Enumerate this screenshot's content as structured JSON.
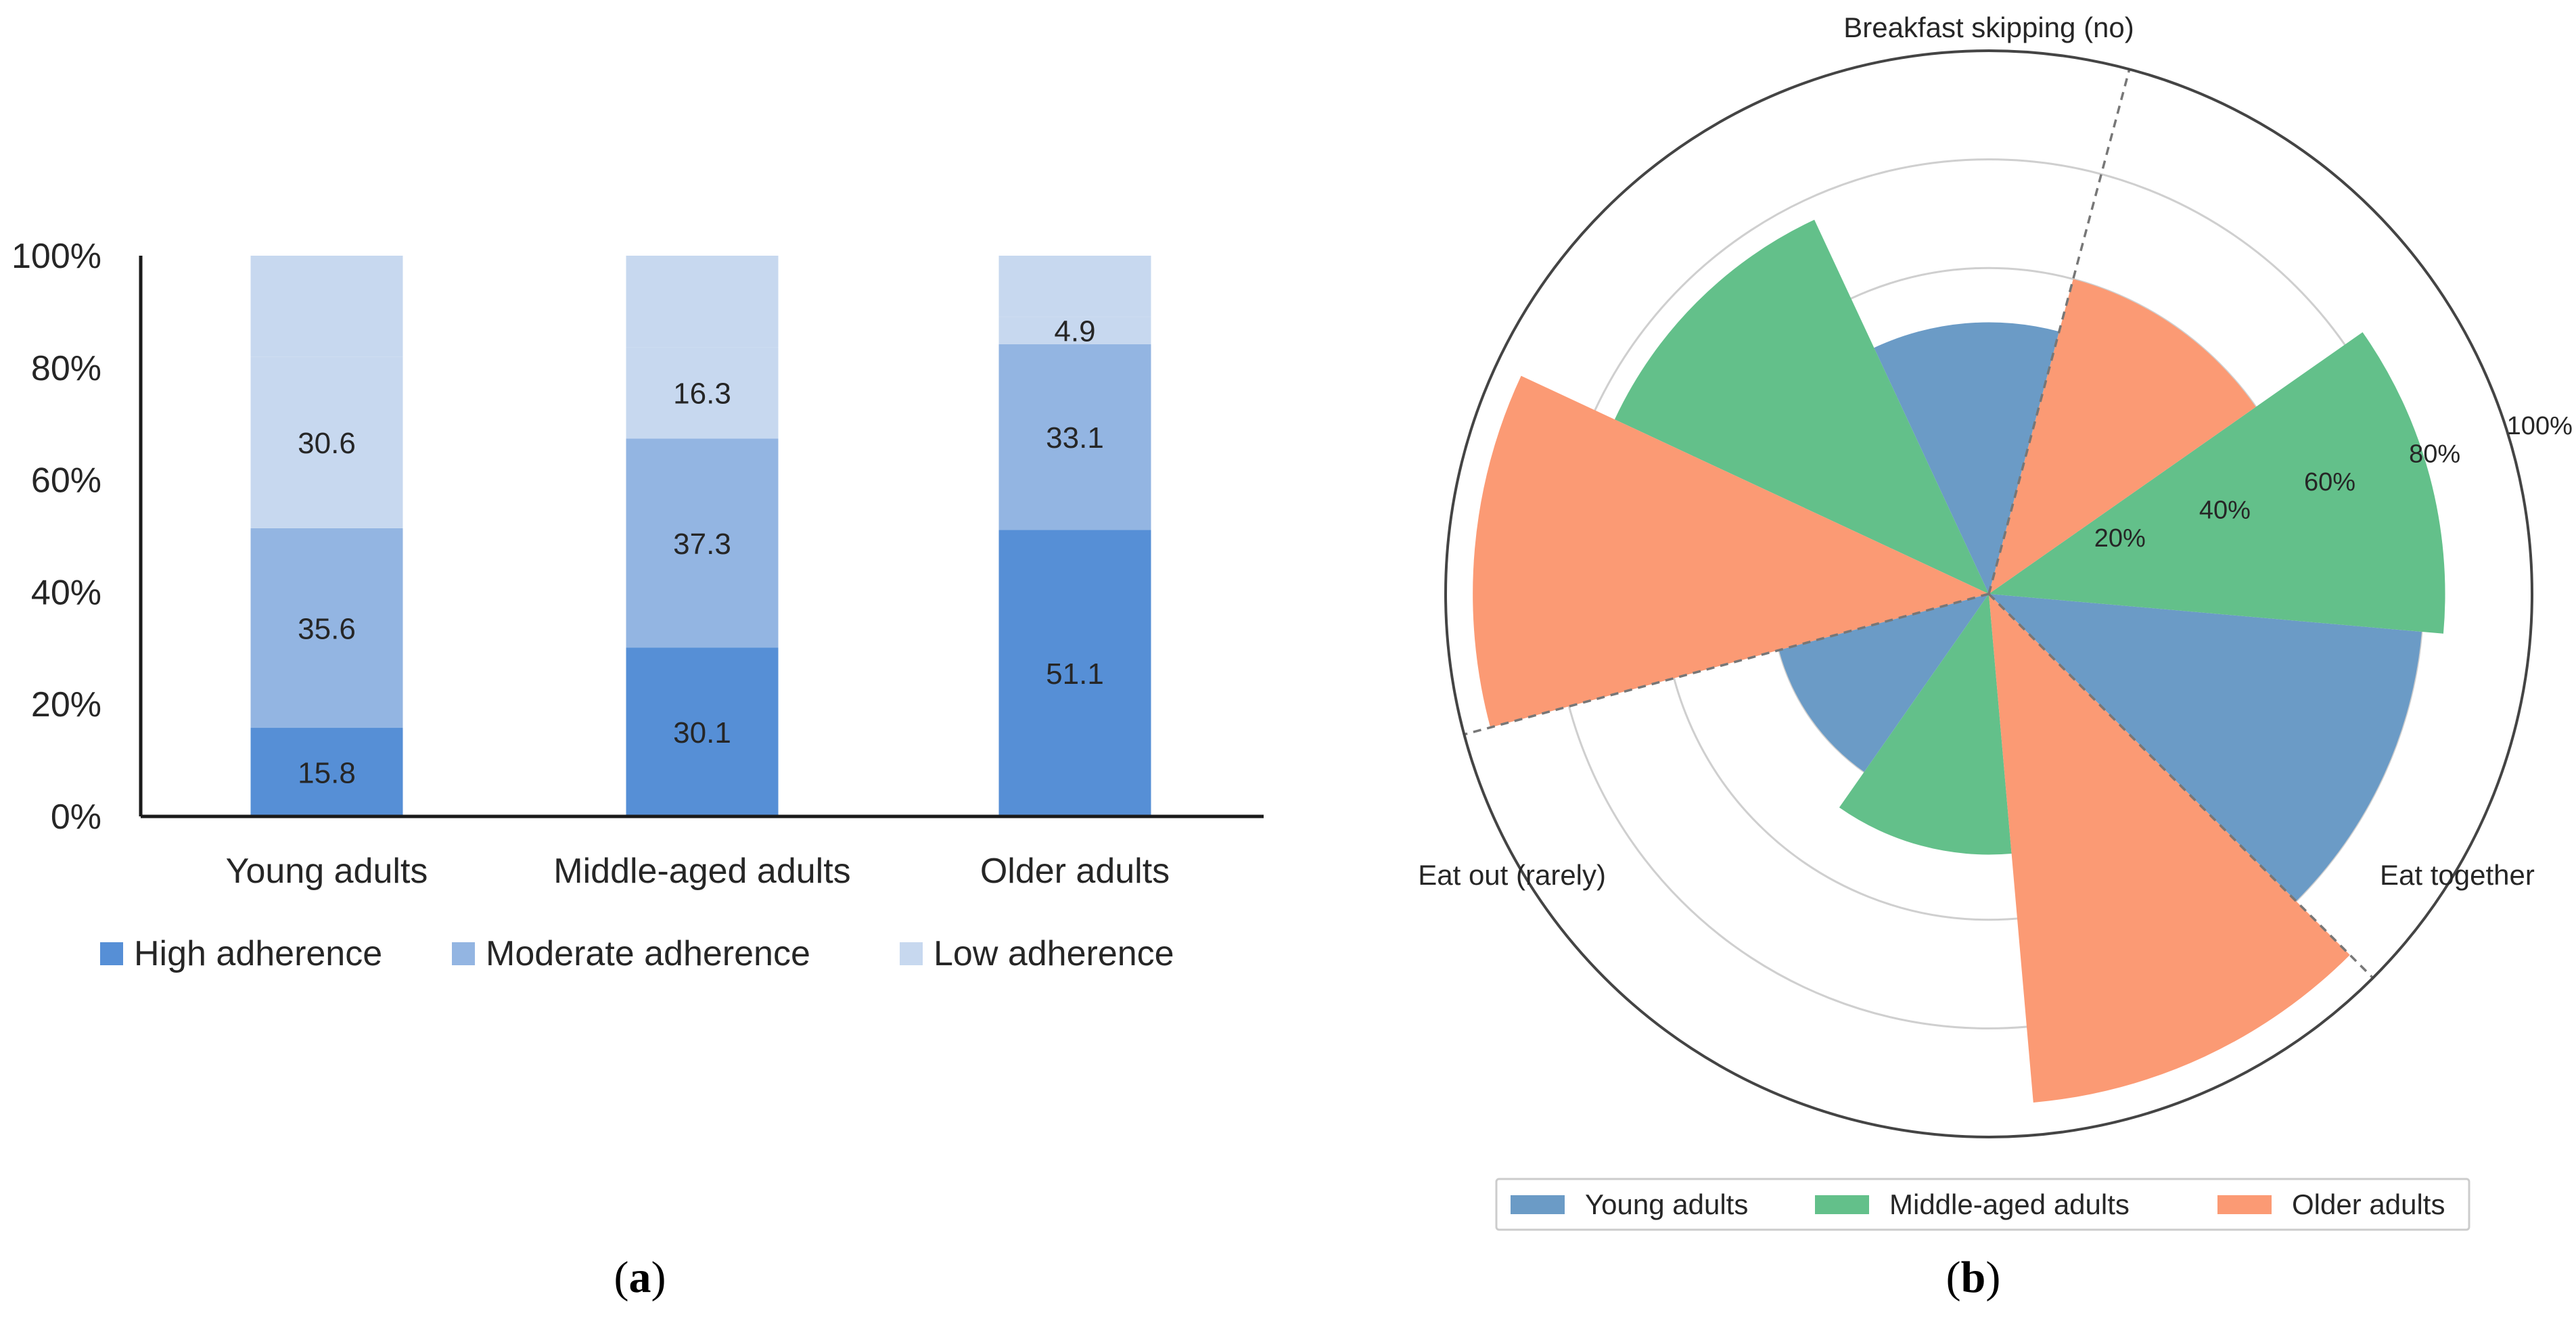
{
  "chart_data": [
    {
      "type": "bar",
      "stacked": true,
      "panel_label": "a",
      "categories": [
        "Young adults",
        "Middle-aged adults",
        "Older adults"
      ],
      "series": [
        {
          "name": "High adherence",
          "color": "#568fd6",
          "values": [
            15.8,
            30.1,
            51.1
          ]
        },
        {
          "name": "Moderate adherence",
          "color": "#93b5e2",
          "values": [
            35.6,
            37.3,
            33.1
          ]
        },
        {
          "name": "Low adherence",
          "color": "#c7d8ef",
          "values": [
            30.6,
            16.3,
            4.9
          ]
        }
      ],
      "yticks": [
        "0%",
        "20%",
        "40%",
        "60%",
        "80%",
        "100%"
      ],
      "ylim": [
        0,
        100
      ],
      "legend": "bottom"
    },
    {
      "type": "polar-bar",
      "panel_label": "b",
      "categories": [
        "Eat together",
        "Breakfast skipping (no)",
        "Eat out (rarely)"
      ],
      "category_angles_deg": [
        15,
        135,
        255
      ],
      "series": [
        {
          "name": "Young adults",
          "color": "#6b9bc6",
          "values": [
            80,
            50,
            40
          ]
        },
        {
          "name": "Middle-aged adults",
          "color": "#63c08a",
          "values": [
            84,
            76,
            48
          ]
        },
        {
          "name": "Older adults",
          "color": "#fb9a74",
          "values": [
            60,
            95,
            94
          ]
        }
      ],
      "rticks": [
        "20%",
        "40%",
        "60%",
        "80%",
        "100%"
      ],
      "rlim": [
        0,
        100
      ],
      "legend": "bottom"
    }
  ]
}
